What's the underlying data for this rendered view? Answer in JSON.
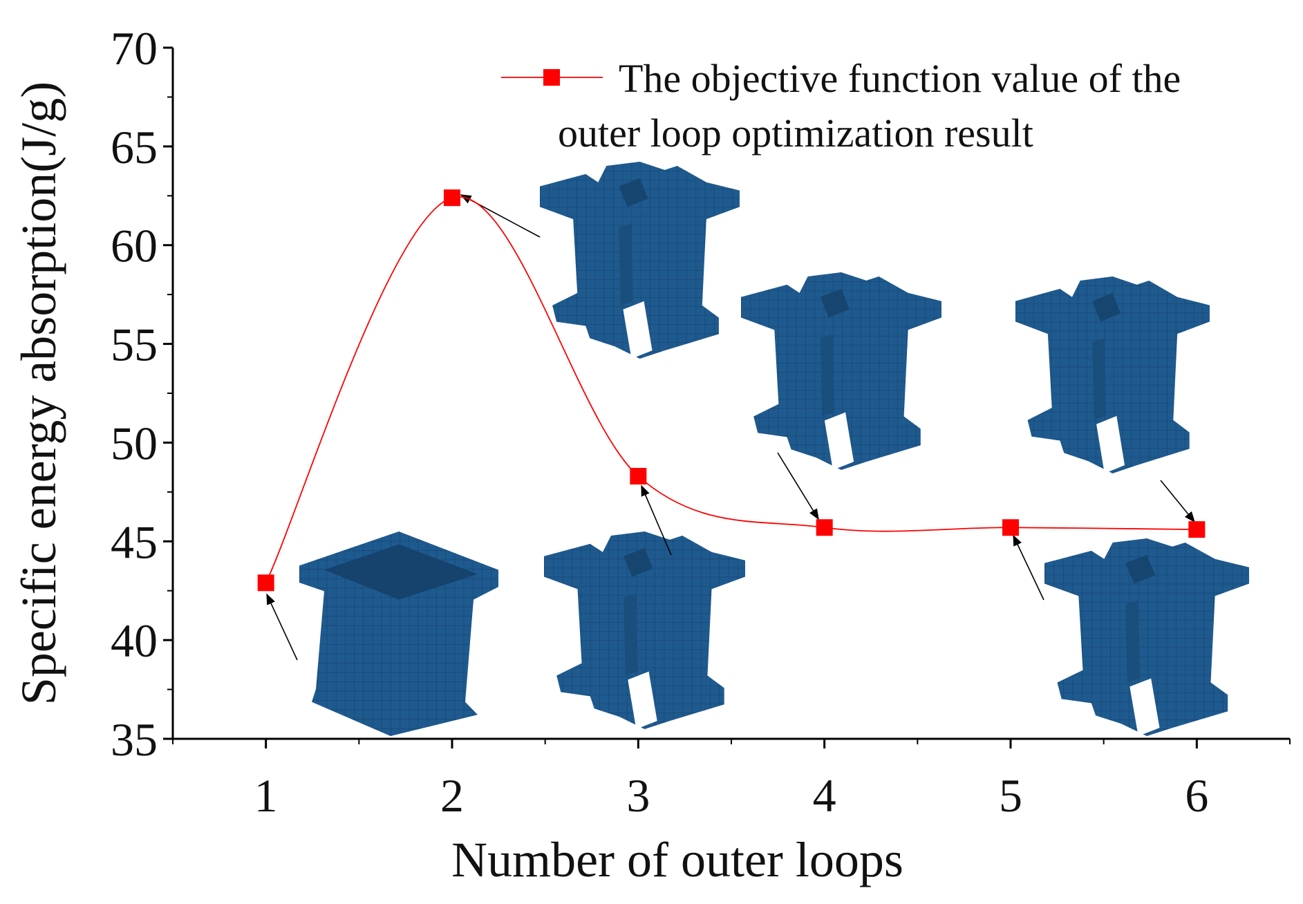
{
  "chart_data": {
    "type": "line",
    "title": "",
    "xlabel": "Number of outer loops",
    "ylabel": "Specific energy absorption(J/g)",
    "xlim": [
      0.5,
      6.5
    ],
    "ylim": [
      35,
      70
    ],
    "x_ticks": [
      1,
      2,
      3,
      4,
      5,
      6
    ],
    "y_ticks": [
      35,
      40,
      45,
      50,
      55,
      60,
      65,
      70
    ],
    "grid": false,
    "legend_position": "top-right",
    "series": [
      {
        "name": "The objective function value of the outer loop optimization result",
        "legend_lines": [
          "The objective function value of the",
          "outer loop optimization result"
        ],
        "color": "#ff0000",
        "marker": "square",
        "smooth": true,
        "x": [
          1,
          2,
          3,
          4,
          5,
          6
        ],
        "y": [
          42.9,
          62.4,
          48.3,
          45.7,
          45.7,
          45.6
        ]
      }
    ],
    "annotations": "voxel structure images with arrows pointing to each data point",
    "structure_color": "#1f5a8f"
  }
}
